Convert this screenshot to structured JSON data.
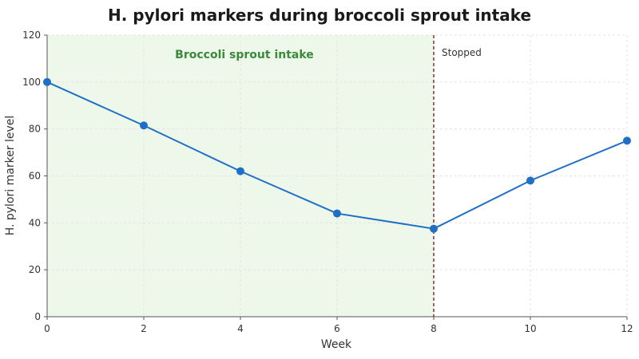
{
  "chart_data": {
    "type": "line",
    "title": "H. pylori markers during broccoli sprout intake",
    "xlabel": "Week",
    "ylabel": "H. pylori marker level",
    "xlim": [
      0,
      12
    ],
    "ylim": [
      0,
      120
    ],
    "x_ticks": [
      0,
      2,
      4,
      6,
      8,
      10,
      12
    ],
    "y_ticks": [
      0,
      20,
      40,
      60,
      80,
      100,
      120
    ],
    "grid": true,
    "series": [
      {
        "x": [
          0,
          2,
          4,
          6,
          8,
          10,
          12
        ],
        "y": [
          100,
          81.5,
          62,
          44,
          37.5,
          58,
          75
        ],
        "color": "#1f6fc5"
      }
    ],
    "shaded_region": {
      "x_start": 0,
      "x_end": 8,
      "label": "Broccoli sprout intake",
      "fill": "#eef8ea",
      "label_color": "#3a8a3a"
    },
    "vertical_marker": {
      "x": 8,
      "label": "Stopped",
      "color": "#6b3a3a"
    }
  }
}
